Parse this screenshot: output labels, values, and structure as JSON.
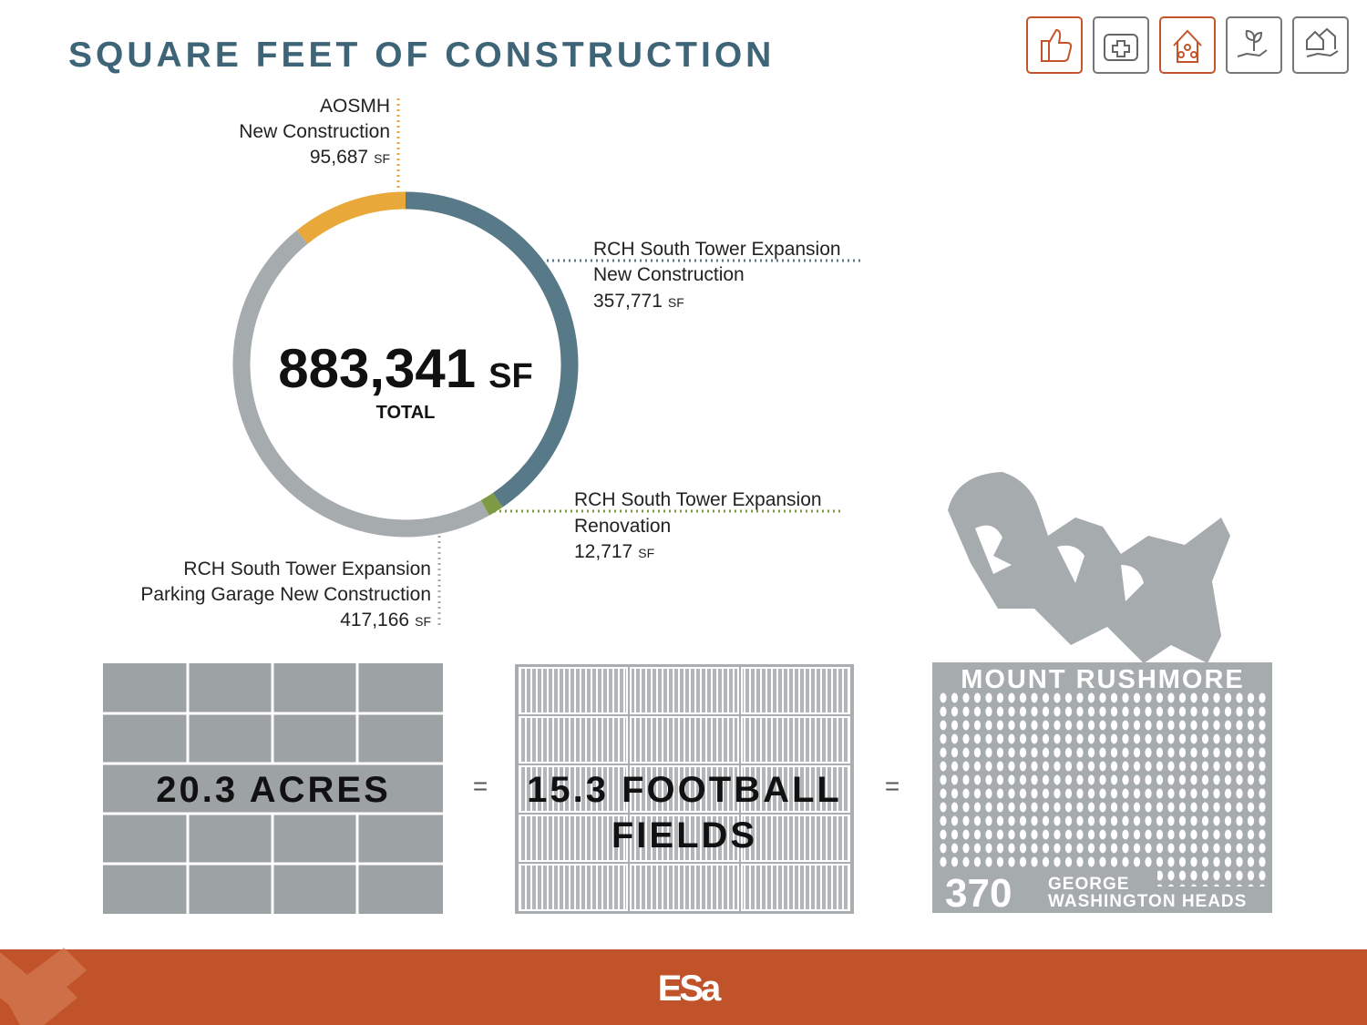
{
  "header": {
    "title": "SQUARE FEET OF CONSTRUCTION"
  },
  "chart_data": {
    "type": "donut",
    "categories": [
      "AOSMH",
      "RCH South Tower Expansion",
      "RCH South Tower Expansion",
      "RCH South Tower Expansion"
    ],
    "subcategories": [
      "New Construction",
      "New Construction",
      "Renovation",
      "Parking Garage New Construction"
    ],
    "values": [
      95687,
      357771,
      12717,
      417166
    ],
    "value_labels": [
      "95,687",
      "357,771",
      "12,717",
      "417,166"
    ],
    "colors": [
      "#e9a83a",
      "#587a88",
      "#7f9a45",
      "#a6abae"
    ],
    "unit": "SF",
    "total_label": "883,341",
    "total_caption": "TOTAL"
  },
  "comparisons": {
    "acres": "20.3 ACRES",
    "equals": "=",
    "football_line1": "15.3 FOOTBALL",
    "football_line2": "FIELDS",
    "rushmore_title": "MOUNT RUSHMORE",
    "rushmore_count": "370",
    "rushmore_line1": "GEORGE",
    "rushmore_line2": "WASHINGTON HEADS"
  },
  "footer": {
    "logo": "ESa"
  }
}
